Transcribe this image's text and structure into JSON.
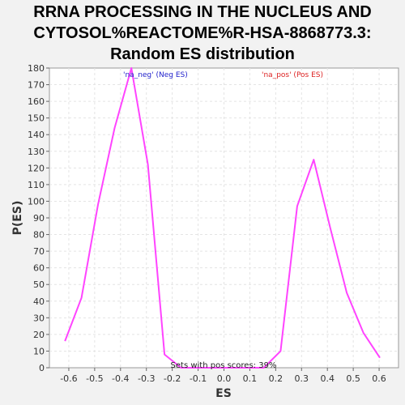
{
  "chart_data": {
    "type": "line",
    "title_lines": [
      "RRNA PROCESSING IN THE NUCLEUS AND",
      "CYTOSOL%REACTOME%R-HSA-8868773.3:",
      "Random ES distribution"
    ],
    "xlabel": "ES",
    "ylabel": "P(ES)",
    "xlim": [
      -0.675,
      0.675
    ],
    "ylim": [
      0,
      180
    ],
    "x_ticks": [
      -0.6,
      -0.5,
      -0.4,
      -0.3,
      -0.2,
      -0.1,
      0.0,
      0.1,
      0.2,
      0.3,
      0.4,
      0.5,
      0.6
    ],
    "x_tick_labels": [
      "-0.6",
      "-0.5",
      "-0.4",
      "-0.3",
      "-0.2",
      "-0.1",
      "0.0",
      "0.1",
      "0.2",
      "0.3",
      "0.4",
      "0.5",
      "0.6"
    ],
    "y_ticks": [
      0,
      10,
      20,
      30,
      40,
      50,
      60,
      70,
      80,
      90,
      100,
      110,
      120,
      130,
      140,
      150,
      160,
      170,
      180
    ],
    "grid": true,
    "line_color": "#ff44ff",
    "series": [
      {
        "x": [
          -0.615,
          -0.551,
          -0.487,
          -0.423,
          -0.358,
          -0.294,
          -0.23,
          -0.166,
          -0.102,
          -0.038,
          0.026,
          0.09,
          0.154,
          0.219,
          0.283,
          0.347,
          0.411,
          0.475,
          0.539,
          0.603
        ],
        "y": [
          16,
          42,
          98,
          144,
          180,
          122,
          8,
          0,
          0,
          0,
          0,
          0,
          0,
          10,
          97,
          125,
          84,
          45,
          21,
          6
        ]
      }
    ],
    "legend": [
      {
        "label": "'na_neg' (Neg ES)",
        "color": "#2222cc",
        "position": "top-left"
      },
      {
        "label": "'na_pos' (Pos ES)",
        "color": "#dd2222",
        "position": "top-right"
      }
    ],
    "annotation": "Sets with pos scores: 39%"
  }
}
